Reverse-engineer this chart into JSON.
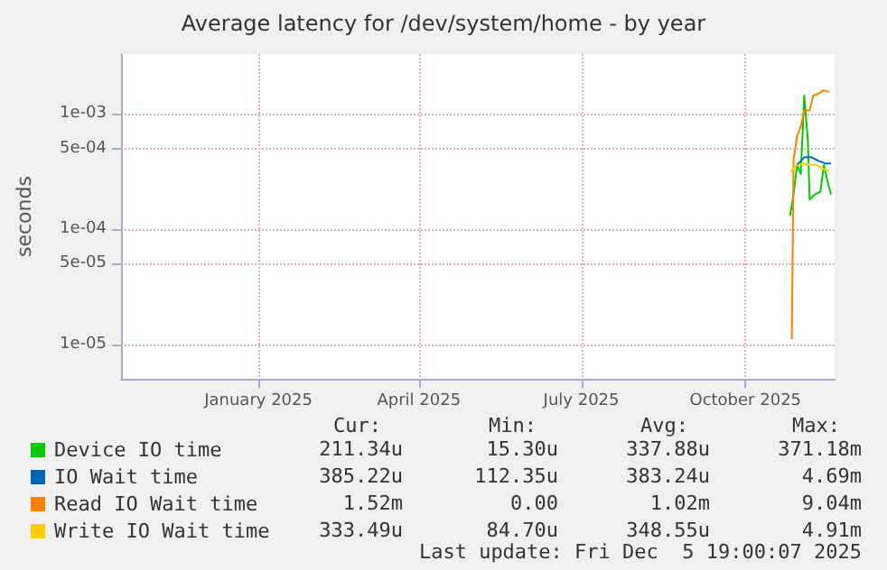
{
  "chart_data": {
    "type": "line",
    "title": "Average latency for /dev/system/home - by year",
    "ylabel": "seconds",
    "log": "y",
    "grid": true,
    "legend": "bottom left",
    "marker": "none",
    "line_style": "solid",
    "xlim": [
      "2024-10-31",
      "2025-12-05"
    ],
    "xticks": [
      {
        "value": "2025-01-16",
        "label": "January 2025"
      },
      {
        "value": "2025-04-16",
        "label": "April 2025"
      },
      {
        "value": "2025-07-16",
        "label": "July 2025"
      },
      {
        "value": "2025-10-16",
        "label": "October 2025"
      }
    ],
    "ylim": [
      5e-06,
      0.0033
    ],
    "yticks": [
      {
        "value": 1e-05,
        "label": "1e-05"
      },
      {
        "value": 5e-05,
        "label": "5e-05"
      },
      {
        "value": 0.0001,
        "label": "1e-04"
      },
      {
        "value": 0.0005,
        "label": "5e-04"
      },
      {
        "value": 0.001,
        "label": "1e-03"
      }
    ],
    "series": [
      {
        "name": "Device IO time",
        "color": "#00cc00",
        "x": [
          "2025-11-10",
          "2025-11-12",
          "2025-11-14",
          "2025-11-16",
          "2025-11-18",
          "2025-11-20",
          "2025-11-21",
          "2025-11-24",
          "2025-11-27",
          "2025-11-29",
          "2025-12-01",
          "2025-12-03"
        ],
        "values": [
          0.00013,
          0.0002,
          0.00036,
          0.0003,
          0.00144,
          0.00058,
          0.00018,
          0.0002,
          0.00021,
          0.00036,
          0.00026,
          0.0002
        ]
      },
      {
        "name": "IO Wait time",
        "color": "#0066b3",
        "x": [
          "2025-11-14",
          "2025-11-18",
          "2025-11-22",
          "2025-11-26",
          "2025-11-30",
          "2025-12-03"
        ],
        "values": [
          0.00036,
          0.00042,
          0.00042,
          0.00039,
          0.00037,
          0.00037
        ]
      },
      {
        "name": "Read IO Wait time",
        "color": "#ff8000",
        "x": [
          "2025-11-11",
          "2025-11-12",
          "2025-11-14",
          "2025-11-16",
          "2025-11-18",
          "2025-11-21",
          "2025-11-23",
          "2025-11-26",
          "2025-11-29",
          "2025-12-02"
        ],
        "values": [
          1.1e-05,
          0.0004,
          0.00064,
          0.00077,
          0.00107,
          0.00107,
          0.00144,
          0.0015,
          0.0016,
          0.00155
        ]
      },
      {
        "name": "Write IO Wait time",
        "color": "#ffcc00",
        "x": [
          "2025-11-10",
          "2025-11-13",
          "2025-11-17",
          "2025-11-21",
          "2025-11-25",
          "2025-11-29",
          "2025-12-02"
        ],
        "values": [
          0.00031,
          0.00035,
          0.00037,
          0.00036,
          0.00036,
          0.00033,
          0.00032
        ]
      }
    ],
    "annotations": [
      "Cur:",
      "Min:",
      "Avg:",
      "Max:",
      "211.34u",
      "15.30u",
      "337.88u",
      "371.18m",
      "385.22u",
      "112.35u",
      "383.24u",
      "4.69m",
      "1.52m",
      "0.00",
      "1.02m",
      "9.04m",
      "333.49u",
      "84.70u",
      "348.55u",
      "4.91m",
      "Last update: Fri Dec  5 19:00:07 2025"
    ]
  }
}
